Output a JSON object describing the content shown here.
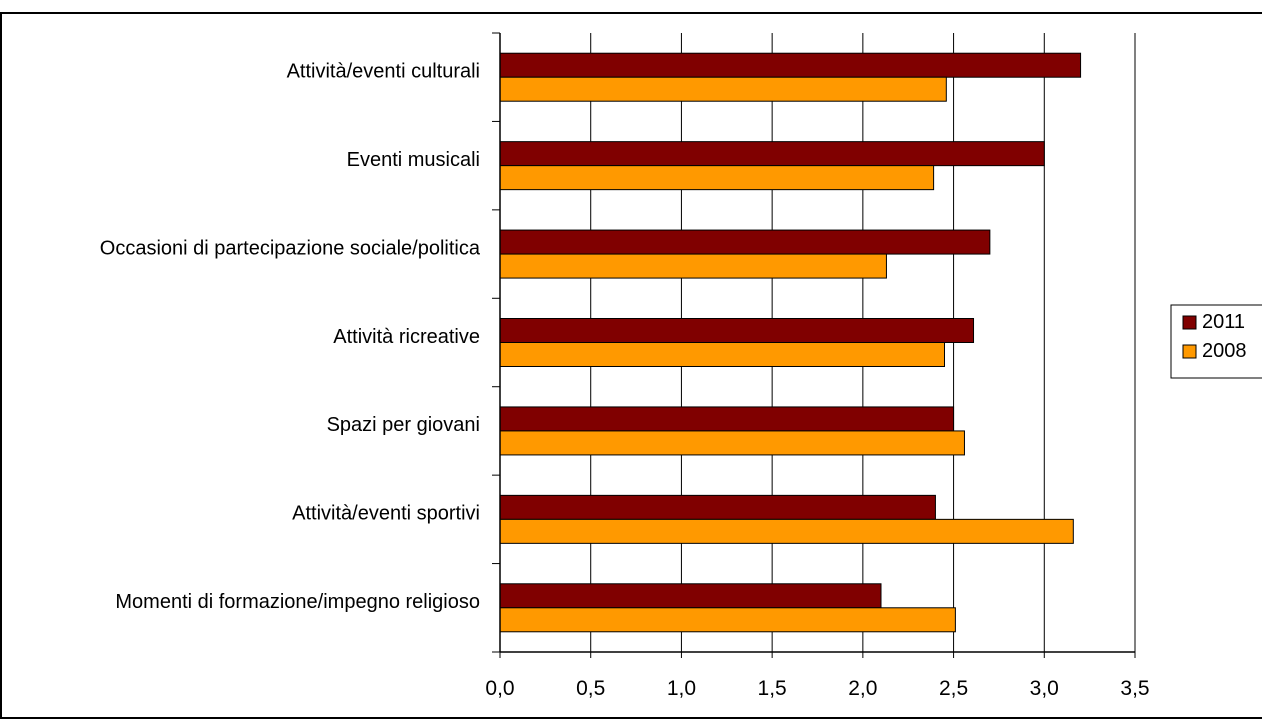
{
  "chart_data": {
    "type": "bar",
    "orientation": "horizontal",
    "title": "",
    "xlabel": "",
    "ylabel": "",
    "categories": [
      "Attività/eventi culturali",
      "Eventi musicali",
      "Occasioni di partecipazione sociale/politica",
      "Attività ricreative",
      "Spazi per giovani",
      "Attività/eventi sportivi",
      "Momenti di formazione/impegno religioso"
    ],
    "series": [
      {
        "name": "2011",
        "color": "#800000",
        "values": [
          3.2,
          3.0,
          2.7,
          2.61,
          2.5,
          2.4,
          2.1
        ]
      },
      {
        "name": "2008",
        "color": "#FF9900",
        "values": [
          2.46,
          2.39,
          2.13,
          2.45,
          2.56,
          3.16,
          2.51
        ]
      }
    ],
    "xlim": [
      0,
      3.5
    ],
    "x_ticks": [
      "0,0",
      "0,5",
      "1,0",
      "1,5",
      "2,0",
      "2,5",
      "3,0",
      "3,5"
    ],
    "grid": "vertical",
    "legend_position": "right"
  }
}
